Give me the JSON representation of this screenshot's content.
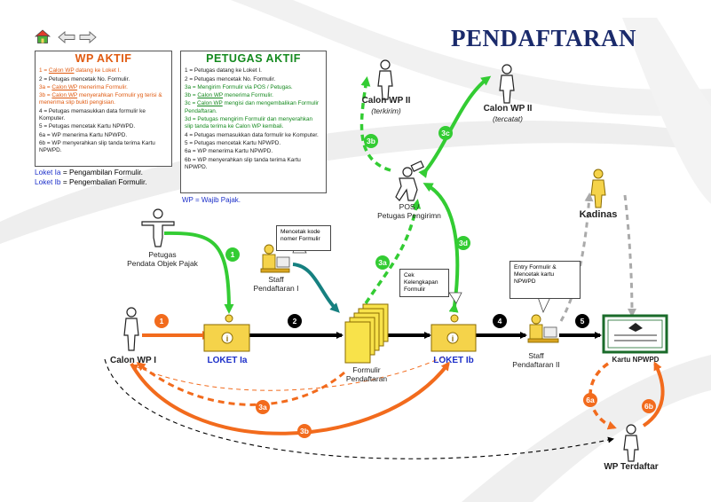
{
  "title": "PENDAFTARAN",
  "nav": {
    "home_icon": "home-icon",
    "back_icon": "arrow-left-icon",
    "forward_icon": "arrow-right-icon"
  },
  "wp_aktif": {
    "heading": "WP AKTIF",
    "items": [
      {
        "num": "1",
        "sep": " = ",
        "link": "Calon WP",
        "text": " datang ke Loket I.",
        "color": "#e05a10"
      },
      {
        "num": "2",
        "sep": " = ",
        "link": "",
        "text": "Petugas mencetak No. Formulir.",
        "color": "#222222"
      },
      {
        "num": "3a",
        "sep": " = ",
        "link": "Calon WP",
        "text": " menerima Formulir.",
        "color": "#e05a10"
      },
      {
        "num": "3b",
        "sep": " = ",
        "link": "Calon WP",
        "text": " menyerahkan Formulir yg terisi & menerima slip bukti pengisian.",
        "color": "#e05a10"
      },
      {
        "num": "4",
        "sep": " = ",
        "link": "",
        "text": "Petugas memasukkan data formulir ke Komputer.",
        "color": "#222222"
      },
      {
        "num": "5",
        "sep": " = ",
        "link": "",
        "text": "Petugas mencetak Kartu NPWPD.",
        "color": "#222222"
      },
      {
        "num": "6a",
        "sep": " = ",
        "link": "",
        "text": "WP menerima Kartu NPWPD.",
        "color": "#222222"
      },
      {
        "num": "6b",
        "sep": " = ",
        "link": "",
        "text": "WP menyerahkan slip tanda terima Kartu NPWPD.",
        "color": "#222222"
      }
    ]
  },
  "loket_legend": [
    {
      "key": "Loket Ia",
      "text": " = Pengambilan Formulir."
    },
    {
      "key": "Loket Ib",
      "text": " = Pengembalian Formulir."
    }
  ],
  "petugas_aktif": {
    "heading": "PETUGAS  AKTIF",
    "items": [
      {
        "num": "1",
        "sep": " = ",
        "link": "",
        "text": "Petugas datang ke Loket I.",
        "color": "#222222"
      },
      {
        "num": "2",
        "sep": " = ",
        "link": "",
        "text": "Petugas mencetak No. Formulir.",
        "color": "#222222"
      },
      {
        "num": "3a",
        "sep": " = ",
        "link": "",
        "text": "Mengirim Formulir via POS / Petugas.",
        "color": "#14891e"
      },
      {
        "num": "3b",
        "sep": " = ",
        "link": "Calon WP",
        "text": " menerima Formulir.",
        "color": "#14891e"
      },
      {
        "num": "3c",
        "sep": " = ",
        "link": "Calon WP",
        "text": " mengisi dan mengembalikan Formulir Pendaftaran.",
        "color": "#14891e"
      },
      {
        "num": "3d",
        "sep": " = ",
        "link": "",
        "text": "Petugas mengirim Formulir dan menyerahkan slip tanda terima ke Calon WP kembali.",
        "color": "#14891e"
      },
      {
        "num": "4",
        "sep": " = ",
        "link": "",
        "text": "Petugas memasukkan data formulir ke Komputer.",
        "color": "#222222"
      },
      {
        "num": "5",
        "sep": " = ",
        "link": "",
        "text": "Petugas mencetak Kartu NPWPD.",
        "color": "#222222"
      },
      {
        "num": "6a",
        "sep": " = ",
        "link": "",
        "text": "WP menerima Kartu NPWPD.",
        "color": "#222222"
      },
      {
        "num": "6b",
        "sep": " = ",
        "link": "",
        "text": "WP menyerahkan slip tanda terima Kartu NPWPD.",
        "color": "#222222"
      }
    ]
  },
  "wp_legend": "WP = Wajib Pajak.",
  "nodes": {
    "calon_wp_i": "Calon WP I",
    "loket_ia": "LOKET Ia",
    "loket_ib": "LOKET Ib",
    "formulir": "Formulir\nPendaftaran",
    "petugas_pendata": "Petugas\nPendata Objek Pajak",
    "staff_1": "Staff\nPendaftaran  I",
    "staff_2": "Staff\nPendaftaran  II",
    "pos": "POS /\nPetugas Pengirimn",
    "calon_wp_ii_terkirim": "Calon WP II",
    "terkirim": "(terkirim)",
    "calon_wp_ii_tercatat": "Calon WP II",
    "tercatat": "(tercatat)",
    "kadinas": "Kadinas",
    "kartu_npwpd": "Kartu NPWPD",
    "wp_terdaftar": "WP Terdaftar"
  },
  "callouts": {
    "cetak": "Mencetak kode\nnomer Formulir",
    "cek": "Cek\nKelengkapan\nFormulir",
    "entry": "Entry Formulir &\nMencetak kartu\nNPWPD"
  },
  "steps": {
    "s1o": "1",
    "s2": "2",
    "s4": "4",
    "s5": "5",
    "s1g": "1",
    "s3a_g": "3a",
    "s3b_g": "3b",
    "s3c_g": "3c",
    "s3d_g": "3d",
    "s3a_o": "3a",
    "s3b_o": "3b",
    "s6a": "6a",
    "s6b": "6b"
  },
  "colors": {
    "title": "#1a2a6b",
    "orange": "#f26b1d",
    "green": "#33cc33",
    "teal": "#168080",
    "loket_label": "#1c2fc9",
    "wp_aktif_head": "#e05a10",
    "petugas_head": "#14891e"
  }
}
